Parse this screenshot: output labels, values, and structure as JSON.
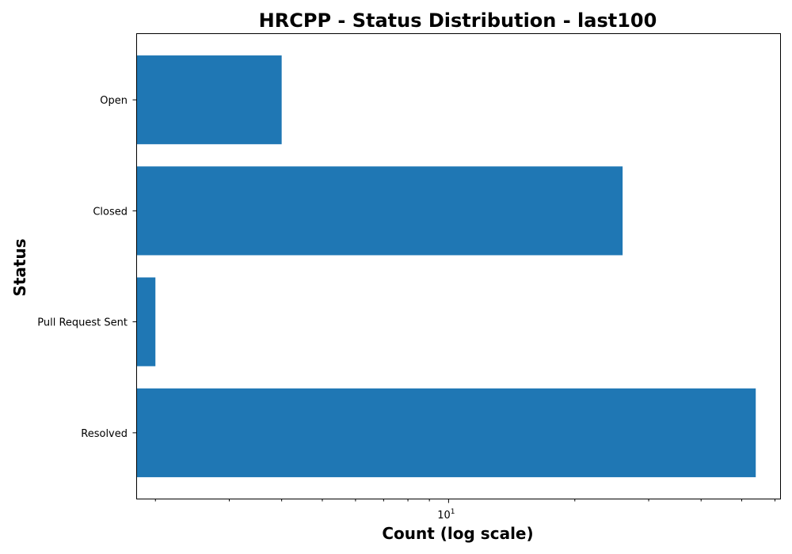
{
  "chart_data": {
    "type": "bar",
    "orientation": "horizontal",
    "title": "HRCPP - Status Distribution - last100",
    "xlabel": "Count (log scale)",
    "ylabel": "Status",
    "xscale": "log",
    "xlim": [
      1.8,
      62
    ],
    "x_tick_label": {
      "base": "10",
      "exp": "1"
    },
    "categories": [
      "Open",
      "Closed",
      "Pull Request Sent",
      "Resolved"
    ],
    "values": [
      4,
      26,
      2,
      54
    ],
    "bar_color": "#1f77b4",
    "grid": false
  }
}
